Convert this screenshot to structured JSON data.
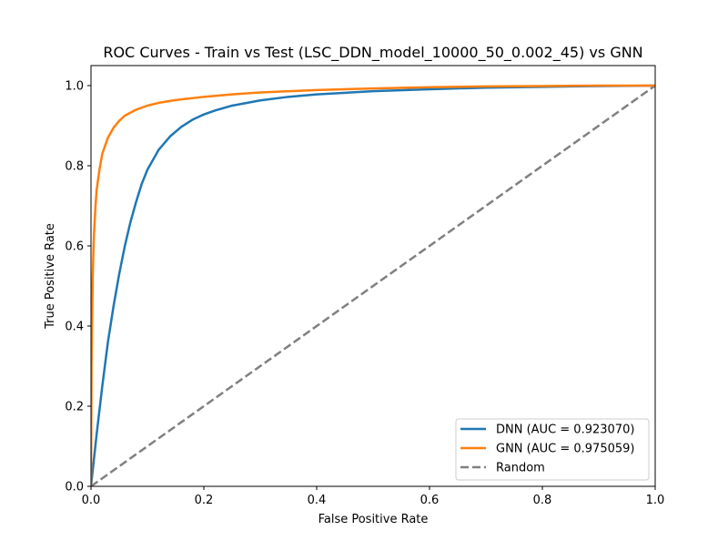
{
  "chart_data": {
    "type": "line",
    "title": "ROC Curves - Train vs Test (LSC_DDN_model_10000_50_0.002_45) vs GNN",
    "xlabel": "False Positive Rate",
    "ylabel": "True Positive Rate",
    "xlim": [
      0.0,
      1.0
    ],
    "ylim": [
      0.0,
      1.05
    ],
    "x_ticks": [
      0.0,
      0.2,
      0.4,
      0.6,
      0.8,
      1.0
    ],
    "y_ticks": [
      0.0,
      0.2,
      0.4,
      0.6,
      0.8,
      1.0
    ],
    "x_tick_labels": [
      "0.0",
      "0.2",
      "0.4",
      "0.6",
      "0.8",
      "1.0"
    ],
    "y_tick_labels": [
      "0.0",
      "0.2",
      "0.4",
      "0.6",
      "0.8",
      "1.0"
    ],
    "grid": false,
    "legend_position": "lower-right",
    "series": [
      {
        "name": "DNN (AUC = 0.923070)",
        "color": "#1f77b4",
        "dash": "solid",
        "x": [
          0.0,
          0.005,
          0.01,
          0.02,
          0.03,
          0.04,
          0.05,
          0.06,
          0.07,
          0.08,
          0.09,
          0.1,
          0.12,
          0.14,
          0.16,
          0.18,
          0.2,
          0.22,
          0.25,
          0.3,
          0.35,
          0.4,
          0.5,
          0.6,
          0.7,
          0.8,
          0.9,
          1.0
        ],
        "y": [
          0.0,
          0.065,
          0.13,
          0.25,
          0.36,
          0.45,
          0.53,
          0.6,
          0.66,
          0.71,
          0.755,
          0.79,
          0.84,
          0.873,
          0.897,
          0.915,
          0.928,
          0.938,
          0.95,
          0.963,
          0.972,
          0.978,
          0.986,
          0.991,
          0.995,
          0.997,
          0.999,
          1.0
        ]
      },
      {
        "name": "GNN (AUC = 0.975059)",
        "color": "#ff7f0e",
        "dash": "solid",
        "x": [
          0.0,
          0.001,
          0.003,
          0.005,
          0.008,
          0.01,
          0.015,
          0.02,
          0.03,
          0.04,
          0.05,
          0.06,
          0.08,
          0.1,
          0.12,
          0.15,
          0.2,
          0.25,
          0.3,
          0.4,
          0.5,
          0.6,
          0.7,
          0.8,
          0.9,
          1.0
        ],
        "y": [
          0.0,
          0.3,
          0.52,
          0.62,
          0.7,
          0.74,
          0.79,
          0.83,
          0.87,
          0.895,
          0.912,
          0.925,
          0.94,
          0.95,
          0.957,
          0.964,
          0.972,
          0.978,
          0.983,
          0.989,
          0.993,
          0.996,
          0.998,
          0.999,
          1.0,
          1.0
        ]
      },
      {
        "name": "Random",
        "color": "#808080",
        "dash": "dashed",
        "x": [
          0.0,
          1.0
        ],
        "y": [
          0.0,
          1.0
        ]
      }
    ]
  }
}
